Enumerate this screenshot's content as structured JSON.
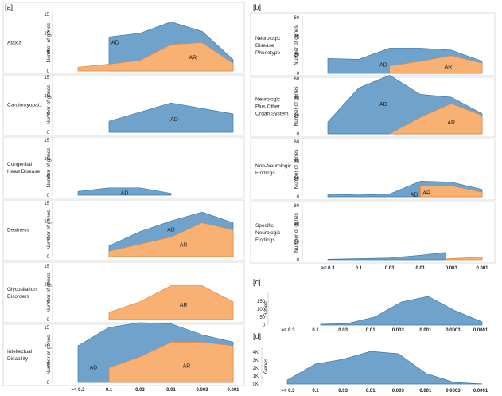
{
  "colors": {
    "ad": "#6fa3cc",
    "ad_stroke": "#3e79a8",
    "ar": "#f9b173",
    "ar_stroke": "#e6843a",
    "axis": "#555555",
    "divider": "#c8c8c8",
    "text": "#222222"
  },
  "panel_labels": {
    "a": "[a]",
    "b": "[b]",
    "c": "[c]",
    "d": "[d]"
  },
  "x_ticks_6": [
    ">= 0.3",
    "0.1",
    "0.03",
    "0.01",
    "0.003",
    "0.001"
  ],
  "x_ticks_8": [
    ">= 0.3",
    "0.1",
    "0.03",
    "0.01",
    "0.003",
    "0.001",
    "0.0003",
    "0.0001"
  ],
  "chart_data": [
    {
      "panel": "a",
      "name": "Ataxia",
      "type": "area",
      "ylabel": "Number of genes",
      "ylim": [
        0,
        15
      ],
      "yticks": [
        0,
        5,
        10,
        15
      ],
      "series": [
        {
          "name": "AD",
          "label_at": [
            1.2,
            7.5
          ],
          "points": [
            [
              1,
              1.8
            ],
            [
              1,
              9
            ],
            [
              2,
              10
            ],
            [
              3,
              13
            ],
            [
              4,
              10.5
            ],
            [
              5,
              3
            ]
          ]
        },
        {
          "name": "AR",
          "label_at": [
            3.7,
            3.5
          ],
          "points": [
            [
              0,
              0
            ],
            [
              0,
              1
            ],
            [
              1,
              1.8
            ],
            [
              2,
              2.8
            ],
            [
              3,
              7
            ],
            [
              4,
              7.5
            ],
            [
              5,
              2
            ]
          ]
        }
      ]
    },
    {
      "panel": "a",
      "name": "Cardiomyopat..",
      "type": "area",
      "ylabel": "Number of genes",
      "ylim": [
        0,
        15
      ],
      "yticks": [
        0,
        5,
        10,
        15
      ],
      "series": [
        {
          "name": "AD",
          "label_at": [
            3.1,
            3.5
          ],
          "points": [
            [
              1,
              0
            ],
            [
              1,
              3
            ],
            [
              3,
              8
            ],
            [
              5,
              5
            ]
          ]
        }
      ]
    },
    {
      "panel": "a",
      "name": "Congenital Heart Disease",
      "type": "area",
      "ylabel": "Number of genes",
      "ylim": [
        0,
        15
      ],
      "yticks": [
        0,
        5,
        10,
        15
      ],
      "series": [
        {
          "name": "AD",
          "label_at": [
            1.5,
            0.5
          ],
          "points": [
            [
              0,
              0
            ],
            [
              0,
              1
            ],
            [
              1,
              2
            ],
            [
              2,
              2
            ],
            [
              3,
              0.5
            ]
          ]
        }
      ]
    },
    {
      "panel": "a",
      "name": "Deafness",
      "type": "area",
      "ylabel": "Number of genes",
      "ylim": [
        0,
        15
      ],
      "yticks": [
        0,
        5,
        10,
        15
      ],
      "series": [
        {
          "name": "AD",
          "label_at": [
            3.0,
            7.5
          ],
          "points": [
            [
              1,
              1.5
            ],
            [
              1,
              3
            ],
            [
              2,
              7
            ],
            [
              3,
              10
            ],
            [
              4,
              12.5
            ],
            [
              5,
              9.5
            ]
          ]
        },
        {
          "name": "AR",
          "label_at": [
            3.4,
            3.2
          ],
          "points": [
            [
              1,
              0
            ],
            [
              1,
              1.5
            ],
            [
              3,
              5.5
            ],
            [
              4,
              9.5
            ],
            [
              5,
              7.5
            ]
          ]
        }
      ]
    },
    {
      "panel": "a",
      "name": "Glycosilation Disorders",
      "type": "area",
      "ylabel": "Number of genes",
      "ylim": [
        0,
        15
      ],
      "yticks": [
        0,
        5,
        10,
        15
      ],
      "series": [
        {
          "name": "AR",
          "label_at": [
            3.4,
            4.0
          ],
          "points": [
            [
              1,
              0
            ],
            [
              1,
              2
            ],
            [
              2,
              5
            ],
            [
              3,
              9.5
            ],
            [
              4,
              9.5
            ],
            [
              5,
              5
            ]
          ]
        }
      ]
    },
    {
      "panel": "a",
      "name": "Intellectual Disability",
      "type": "area",
      "ylabel": "Number of genes",
      "ylim": [
        0,
        15
      ],
      "yticks": [
        0,
        5,
        10,
        15
      ],
      "series": [
        {
          "name": "AD",
          "label_at": [
            0.5,
            4.0
          ],
          "points": [
            [
              0,
              0
            ],
            [
              0,
              10
            ],
            [
              1,
              15
            ],
            [
              2,
              17
            ],
            [
              3,
              16
            ],
            [
              4,
              13
            ],
            [
              5,
              11
            ]
          ]
        },
        {
          "name": "AR",
          "label_at": [
            3.5,
            4.5
          ],
          "points": [
            [
              1,
              0
            ],
            [
              1,
              4
            ],
            [
              2,
              7
            ],
            [
              3,
              11
            ],
            [
              4,
              11
            ],
            [
              5,
              10
            ]
          ]
        }
      ]
    },
    {
      "panel": "b",
      "name": "Neurologic Disease Phenotype",
      "type": "area",
      "ylabel": "Number of genes",
      "ylim": [
        0,
        60
      ],
      "yticks": [
        0,
        20,
        40,
        60
      ],
      "series": [
        {
          "name": "AD",
          "label_at": [
            1.8,
            9
          ],
          "points": [
            [
              0,
              0
            ],
            [
              0,
              16
            ],
            [
              1,
              15
            ],
            [
              2,
              27
            ],
            [
              3,
              27
            ],
            [
              4,
              25
            ],
            [
              5,
              13
            ]
          ]
        },
        {
          "name": "AR",
          "label_at": [
            3.9,
            7
          ],
          "points": [
            [
              2,
              0
            ],
            [
              2,
              8
            ],
            [
              3,
              13
            ],
            [
              4,
              19
            ],
            [
              5,
              11
            ]
          ]
        }
      ]
    },
    {
      "panel": "b",
      "name": "Neurologic Plus Other Organ System",
      "type": "area",
      "ylabel": "Number of genes",
      "ylim": [
        0,
        60
      ],
      "yticks": [
        0,
        20,
        40,
        60
      ],
      "series": [
        {
          "name": "AD",
          "label_at": [
            1.8,
            32
          ],
          "points": [
            [
              0,
              0
            ],
            [
              0,
              13
            ],
            [
              1,
              50
            ],
            [
              2,
              64
            ],
            [
              3,
              43
            ],
            [
              4,
              40
            ],
            [
              5,
              22
            ]
          ]
        },
        {
          "name": "AR",
          "label_at": [
            4.0,
            12
          ],
          "points": [
            [
              2,
              0
            ],
            [
              3,
              18
            ],
            [
              4,
              33
            ],
            [
              5,
              20
            ]
          ]
        }
      ]
    },
    {
      "panel": "b",
      "name": "Non-Neurologic Findings",
      "type": "area",
      "ylabel": "Number of genes",
      "ylim": [
        0,
        60
      ],
      "yticks": [
        0,
        20,
        40,
        60
      ],
      "series": [
        {
          "name": "AD",
          "label_at": [
            2.8,
            2
          ],
          "points": [
            [
              0,
              0
            ],
            [
              0,
              3
            ],
            [
              1,
              2
            ],
            [
              2,
              3
            ],
            [
              3,
              17
            ],
            [
              4,
              16
            ],
            [
              5,
              8
            ]
          ]
        },
        {
          "name": "AR",
          "label_at": [
            3.2,
            4
          ],
          "points": [
            [
              3,
              0
            ],
            [
              3,
              12
            ],
            [
              4,
              12
            ],
            [
              5,
              5
            ]
          ]
        }
      ]
    },
    {
      "panel": "b",
      "name": "Specific Neurologic Findings",
      "type": "area",
      "ylabel": "Number of genes",
      "ylim": [
        0,
        60
      ],
      "yticks": [
        0,
        20,
        40,
        60
      ],
      "series": [
        {
          "name": "AD",
          "label_at": null,
          "points": [
            [
              0,
              0
            ],
            [
              0,
              0.5
            ],
            [
              2,
              2
            ],
            [
              3,
              5
            ],
            [
              3.8,
              8
            ],
            [
              3.8,
              0
            ]
          ]
        },
        {
          "name": "AR",
          "label_at": null,
          "points": [
            [
              3.8,
              0
            ],
            [
              3.8,
              1
            ],
            [
              5,
              3
            ],
            [
              5,
              0
            ]
          ]
        }
      ]
    },
    {
      "panel": "c",
      "name": "",
      "type": "area",
      "ylabel": "Genes",
      "ylim": [
        0,
        200
      ],
      "yticks": [
        0,
        50,
        100,
        150
      ],
      "series": [
        {
          "name": "Genes",
          "label_at": null,
          "points": [
            [
              1,
              0
            ],
            [
              1,
              5
            ],
            [
              2,
              10
            ],
            [
              3,
              50
            ],
            [
              4,
              145
            ],
            [
              5,
              180
            ],
            [
              6,
              90
            ],
            [
              7,
              20
            ],
            [
              7,
              0
            ]
          ]
        }
      ]
    },
    {
      "panel": "d",
      "name": "",
      "type": "area",
      "ylabel": "Genes",
      "ylim": [
        0,
        4500
      ],
      "yticks": [
        0,
        1000,
        2000,
        3000,
        4000
      ],
      "ytick_labels": [
        "0K",
        "1K",
        "2K",
        "3K",
        "4K"
      ],
      "series": [
        {
          "name": "Genes",
          "label_at": null,
          "points": [
            [
              0,
              0
            ],
            [
              0,
              500
            ],
            [
              1,
              2500
            ],
            [
              2,
              3100
            ],
            [
              3,
              4100
            ],
            [
              4,
              3800
            ],
            [
              5,
              1300
            ],
            [
              6,
              200
            ],
            [
              7,
              20
            ],
            [
              7,
              0
            ]
          ]
        }
      ]
    }
  ]
}
